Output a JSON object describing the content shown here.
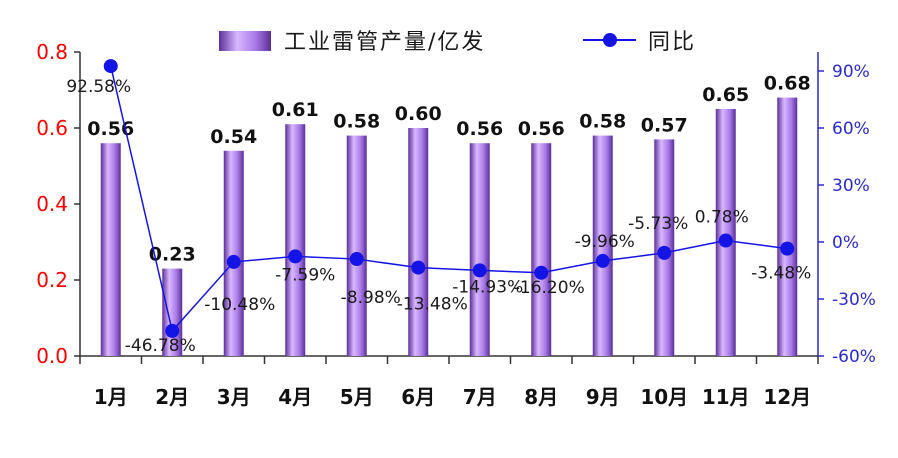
{
  "chart_data": {
    "type": "bar",
    "categories": [
      "1月",
      "2月",
      "3月",
      "4月",
      "5月",
      "6月",
      "7月",
      "8月",
      "9月",
      "10月",
      "11月",
      "12月"
    ],
    "series": [
      {
        "name": "工业雷管产量/亿发",
        "type": "bar",
        "axis": "left",
        "values": [
          0.56,
          0.23,
          0.54,
          0.61,
          0.58,
          0.6,
          0.56,
          0.56,
          0.58,
          0.57,
          0.65,
          0.68
        ],
        "labels": [
          "0.56",
          "0.23",
          "0.54",
          "0.61",
          "0.58",
          "0.60",
          "0.56",
          "0.56",
          "0.58",
          "0.57",
          "0.65",
          "0.68"
        ]
      },
      {
        "name": "同比",
        "type": "line",
        "axis": "right",
        "values": [
          92.58,
          -46.78,
          -10.48,
          -7.59,
          -8.98,
          -13.48,
          -14.93,
          -16.2,
          -9.96,
          -5.73,
          0.78,
          -3.48
        ],
        "labels": [
          "92.58%",
          "-46.78%",
          "-10.48%",
          "-7.59%",
          "-8.98%",
          "-13.48%",
          "-14.93%",
          "-16.20%",
          "-9.96%",
          "-5.73%",
          "0.78%",
          "-3.48%"
        ]
      }
    ],
    "y_left": {
      "min": 0,
      "max": 0.8,
      "ticks": [
        "0.0",
        "0.2",
        "0.4",
        "0.6",
        "0.8"
      ]
    },
    "y_right": {
      "min": -60,
      "max": 100,
      "ticks": [
        "-60%",
        "-30%",
        "0%",
        "30%",
        "60%",
        "90%"
      ],
      "tick_values": [
        -60,
        -30,
        0,
        30,
        60,
        90
      ]
    },
    "legend_position": "top",
    "grid": false,
    "colors": {
      "bar_light": "#d9b8ff",
      "bar_mid": "#a97ae6",
      "bar_dark": "#5a2f9a",
      "line": "#1414e6",
      "marker": "#1414e6",
      "left_axis": "#ff0000",
      "right_axis": "#2a2ad0"
    }
  }
}
